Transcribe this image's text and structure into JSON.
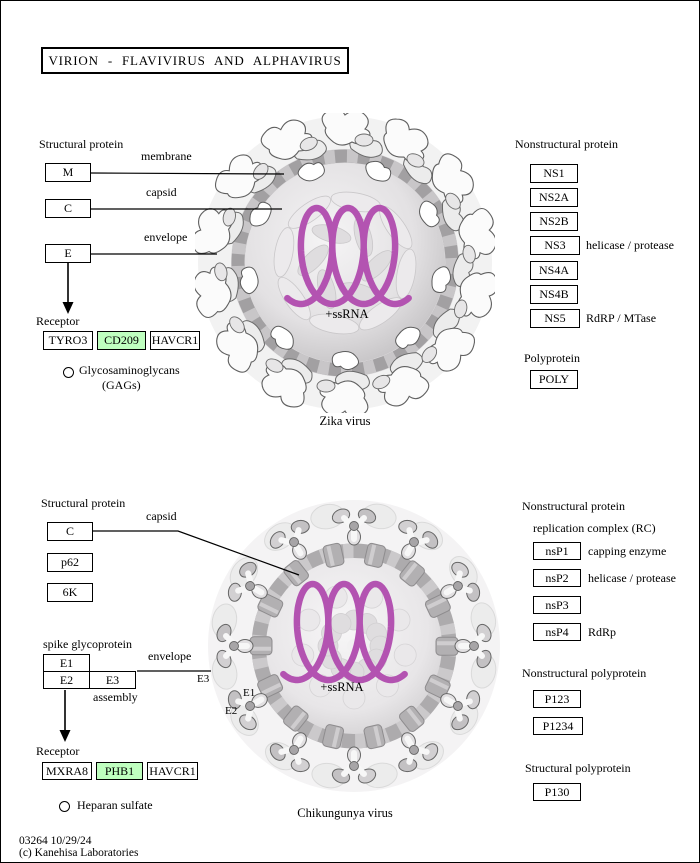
{
  "page": {
    "title": "VIRION - FLAVIVIRUS AND ALPHAVIRUS",
    "footer_line1": "03264 10/29/24",
    "footer_line2": "(c) Kanehisa Laboratories"
  },
  "colors": {
    "highlight_green": "#bfffbf",
    "rna_purple": "#b353b1",
    "line_black": "#000000"
  },
  "flavivirus": {
    "section_structural": "Structural protein",
    "proteins": [
      {
        "label": "M",
        "annotation": "membrane"
      },
      {
        "label": "C",
        "annotation": "capsid"
      },
      {
        "label": "E",
        "annotation": "envelope"
      }
    ],
    "receptor_heading": "Receptor",
    "receptors": [
      {
        "label": "TYRO3",
        "highlight": false
      },
      {
        "label": "CD209",
        "highlight": true
      },
      {
        "label": "HAVCR1",
        "highlight": false
      }
    ],
    "attachment_factor_line1": "Glycosaminoglycans",
    "attachment_factor_line2": "(GAGs)",
    "rna_label": "+ssRNA",
    "virus_caption": "Zika virus",
    "section_nonstructural": "Nonstructural protein",
    "nonstructural": [
      {
        "label": "NS1",
        "annotation": ""
      },
      {
        "label": "NS2A",
        "annotation": ""
      },
      {
        "label": "NS2B",
        "annotation": ""
      },
      {
        "label": "NS3",
        "annotation": "helicase / protease"
      },
      {
        "label": "NS4A",
        "annotation": ""
      },
      {
        "label": "NS4B",
        "annotation": ""
      },
      {
        "label": "NS5",
        "annotation": "RdRP / MTase"
      }
    ],
    "polyprotein_heading": "Polyprotein",
    "polyprotein_label": "POLY"
  },
  "alphavirus": {
    "section_structural": "Structural protein",
    "capsid_label": "C",
    "capsid_annotation": "capsid",
    "p62_label": "p62",
    "k6_label": "6K",
    "spike_heading": "spike glycoprotein",
    "e1": "E1",
    "e2": "E2",
    "e3": "E3",
    "envelope_annotation": "envelope",
    "assembly_annotation": "assembly",
    "virion_labels": {
      "e3": "E3",
      "e1": "E1",
      "e2": "E2"
    },
    "receptor_heading": "Receptor",
    "receptors": [
      {
        "label": "MXRA8",
        "highlight": false
      },
      {
        "label": "PHB1",
        "highlight": true
      },
      {
        "label": "HAVCR1",
        "highlight": false
      }
    ],
    "attachment_factor": "Heparan sulfate",
    "rna_label": "+ssRNA",
    "virus_caption": "Chikungunya virus",
    "section_nonstructural": "Nonstructural protein",
    "rc_heading": "replication complex (RC)",
    "nsp": [
      {
        "label": "nsP1",
        "annotation": "capping enzyme"
      },
      {
        "label": "nsP2",
        "annotation": "helicase / protease"
      },
      {
        "label": "nsP3",
        "annotation": ""
      },
      {
        "label": "nsP4",
        "annotation": "RdRp"
      }
    ],
    "ns_polyprotein_heading": "Nonstructural polyprotein",
    "ns_polyproteins": [
      {
        "label": "P123"
      },
      {
        "label": "P1234"
      }
    ],
    "s_polyprotein_heading": "Structural polyprotein",
    "s_polyprotein_label": "P130"
  }
}
